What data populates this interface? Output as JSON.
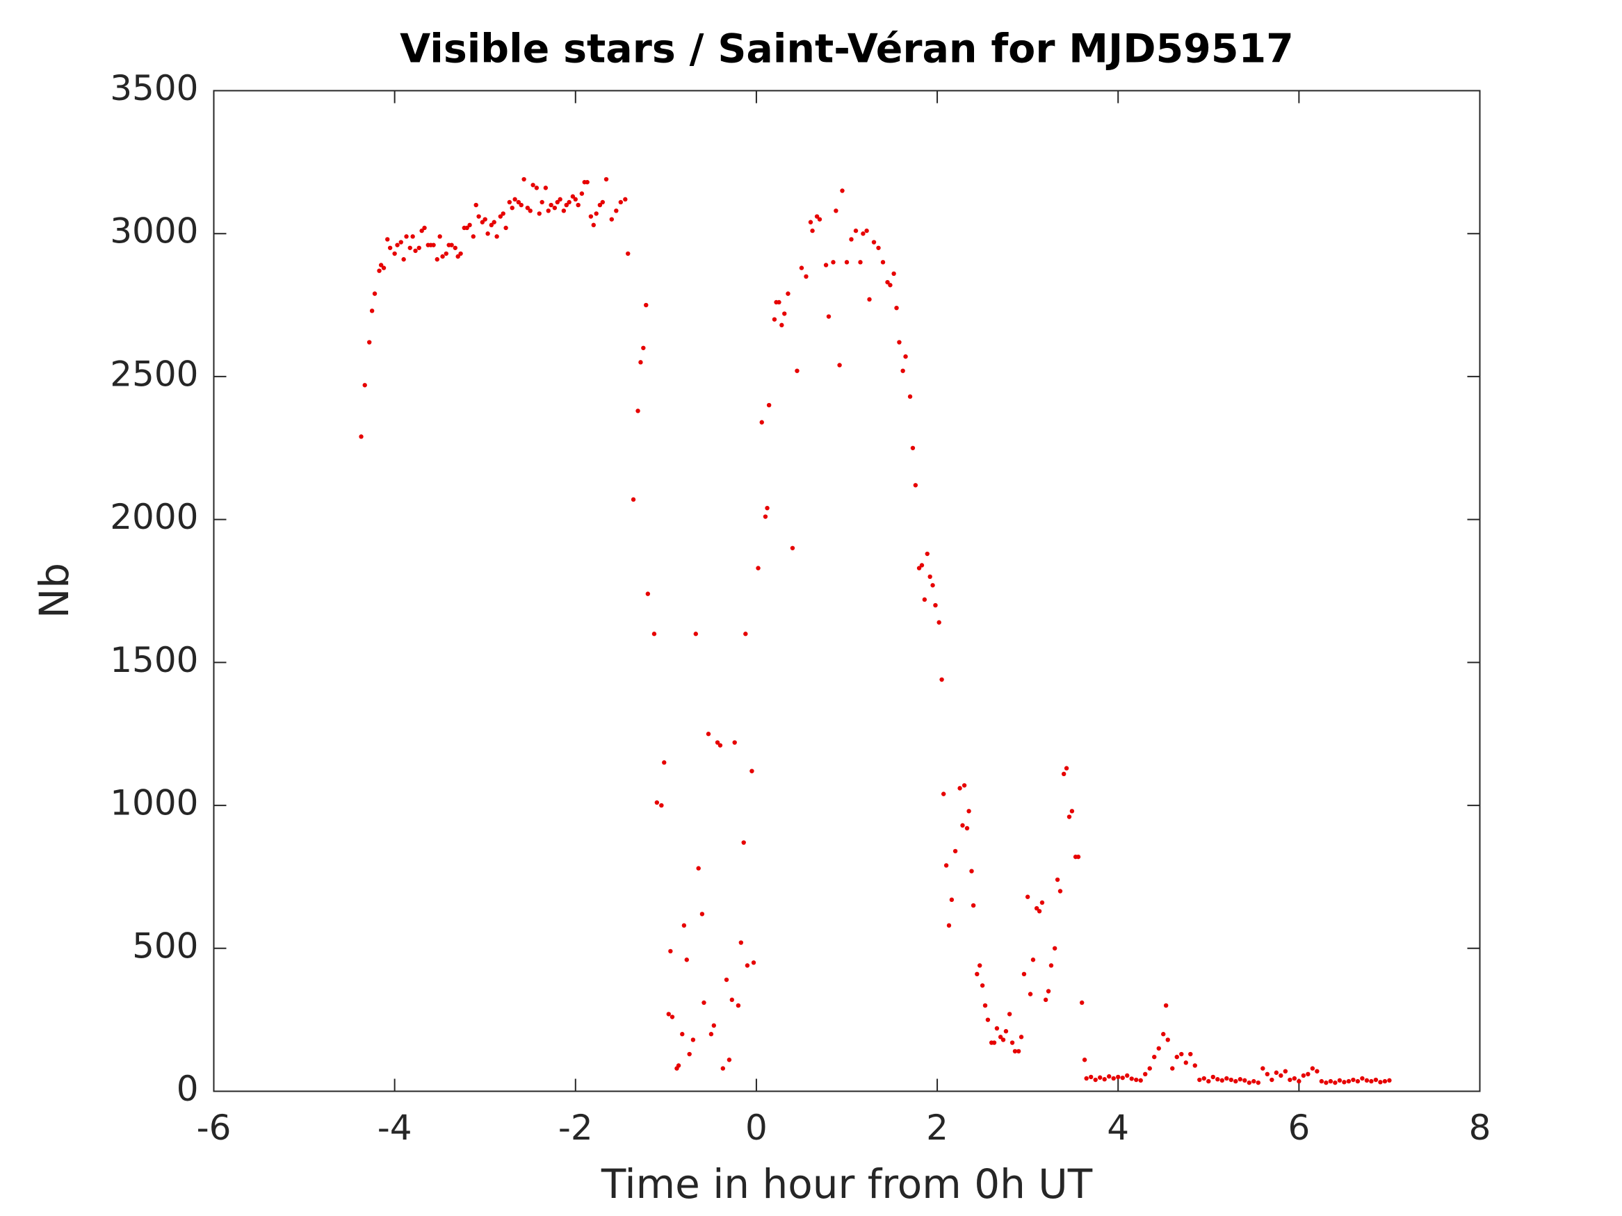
{
  "chart_data": {
    "type": "scatter",
    "title": "Visible stars / Saint-Véran for MJD59517",
    "xlabel": "Time in hour from 0h UT",
    "ylabel": "Nb",
    "color": "#e60000",
    "xlim": [
      -6,
      8
    ],
    "xticks": [
      -6,
      -4,
      -2,
      0,
      2,
      4,
      6,
      8
    ],
    "ylim": [
      0,
      3500
    ],
    "yticks": [
      0,
      500,
      1000,
      1500,
      2000,
      2500,
      3000,
      3500
    ],
    "x": [
      -4.37,
      -4.33,
      -4.28,
      -4.25,
      -4.22,
      -4.17,
      -4.15,
      -4.12,
      -4.08,
      -4.05,
      -4.0,
      -3.97,
      -3.93,
      -3.9,
      -3.87,
      -3.83,
      -3.8,
      -3.77,
      -3.73,
      -3.7,
      -3.67,
      -3.63,
      -3.6,
      -3.57,
      -3.53,
      -3.5,
      -3.47,
      -3.43,
      -3.4,
      -3.37,
      -3.33,
      -3.3,
      -3.27,
      -3.23,
      -3.2,
      -3.17,
      -3.13,
      -3.1,
      -3.07,
      -3.03,
      -3.0,
      -2.97,
      -2.93,
      -2.9,
      -2.87,
      -2.83,
      -2.8,
      -2.77,
      -2.73,
      -2.7,
      -2.67,
      -2.63,
      -2.6,
      -2.57,
      -2.53,
      -2.5,
      -2.47,
      -2.43,
      -2.4,
      -2.37,
      -2.33,
      -2.3,
      -2.27,
      -2.23,
      -2.2,
      -2.17,
      -2.13,
      -2.1,
      -2.07,
      -2.03,
      -2.0,
      -1.97,
      -1.93,
      -1.9,
      -1.87,
      -1.83,
      -1.8,
      -1.77,
      -1.73,
      -1.7,
      -1.66,
      -1.6,
      -1.55,
      -1.5,
      -1.45,
      -1.42,
      -1.36,
      -1.31,
      -1.28,
      -1.25,
      -1.22,
      -1.2,
      -1.13,
      -1.1,
      -1.05,
      -1.02,
      -0.97,
      -0.93,
      -0.95,
      -0.88,
      -0.86,
      -0.82,
      -0.8,
      -0.77,
      -0.74,
      -0.7,
      -0.67,
      -0.64,
      -0.6,
      -0.58,
      -0.53,
      -0.5,
      -0.47,
      -0.43,
      -0.4,
      -0.37,
      -0.33,
      -0.3,
      -0.27,
      -0.24,
      -0.2,
      -0.17,
      -0.14,
      -0.12,
      -0.1,
      -0.05,
      -0.03,
      0.02,
      0.06,
      0.1,
      0.12,
      0.14,
      0.2,
      0.22,
      0.25,
      0.28,
      0.31,
      0.35,
      0.4,
      0.45,
      0.5,
      0.55,
      0.6,
      0.62,
      0.67,
      0.7,
      0.77,
      0.8,
      0.85,
      0.88,
      0.92,
      0.95,
      1.0,
      1.05,
      1.1,
      1.15,
      1.18,
      1.22,
      1.25,
      1.3,
      1.35,
      1.4,
      1.45,
      1.48,
      1.52,
      1.55,
      1.58,
      1.62,
      1.65,
      1.7,
      1.73,
      1.76,
      1.8,
      1.83,
      1.86,
      1.89,
      1.92,
      1.95,
      1.98,
      2.02,
      2.05,
      2.07,
      2.1,
      2.13,
      2.16,
      2.2,
      2.25,
      2.28,
      2.3,
      2.33,
      2.35,
      2.38,
      2.4,
      2.44,
      2.47,
      2.5,
      2.53,
      2.56,
      2.6,
      2.63,
      2.66,
      2.7,
      2.73,
      2.76,
      2.8,
      2.83,
      2.86,
      2.9,
      2.93,
      2.96,
      3.0,
      3.03,
      3.06,
      3.1,
      3.13,
      3.16,
      3.2,
      3.23,
      3.26,
      3.3,
      3.33,
      3.36,
      3.4,
      3.43,
      3.46,
      3.49,
      3.53,
      3.56,
      3.6,
      3.63,
      3.65,
      3.7,
      3.75,
      3.8,
      3.85,
      3.9,
      3.95,
      4.0,
      4.05,
      4.1,
      4.15,
      4.2,
      4.25,
      4.3,
      4.35,
      4.4,
      4.45,
      4.5,
      4.53,
      4.55,
      4.6,
      4.65,
      4.7,
      4.75,
      4.8,
      4.85,
      4.9,
      4.95,
      5.0,
      5.05,
      5.1,
      5.15,
      5.2,
      5.25,
      5.3,
      5.35,
      5.4,
      5.45,
      5.5,
      5.55,
      5.6,
      5.65,
      5.7,
      5.75,
      5.8,
      5.85,
      5.9,
      5.95,
      6.0,
      6.05,
      6.1,
      6.15,
      6.2,
      6.25,
      6.3,
      6.35,
      6.4,
      6.45,
      6.5,
      6.55,
      6.6,
      6.65,
      6.7,
      6.75,
      6.8,
      6.85,
      6.9,
      6.95,
      7.0
    ],
    "values": [
      2290,
      2470,
      2620,
      2730,
      2790,
      2870,
      2890,
      2880,
      2980,
      2950,
      2930,
      2960,
      2970,
      2910,
      2990,
      2950,
      2990,
      2940,
      2950,
      3010,
      3020,
      2960,
      2960,
      2960,
      2910,
      2990,
      2920,
      2930,
      2960,
      2960,
      2950,
      2920,
      2930,
      3020,
      3020,
      3030,
      2990,
      3100,
      3060,
      3040,
      3050,
      3000,
      3030,
      3040,
      2990,
      3060,
      3070,
      3020,
      3110,
      3090,
      3120,
      3110,
      3100,
      3190,
      3090,
      3080,
      3170,
      3160,
      3070,
      3110,
      3160,
      3080,
      3100,
      3090,
      3110,
      3120,
      3080,
      3100,
      3110,
      3130,
      3120,
      3100,
      3140,
      3180,
      3180,
      3060,
      3030,
      3070,
      3100,
      3110,
      3190,
      3050,
      3080,
      3110,
      3120,
      2930,
      2070,
      2380,
      2550,
      2600,
      2750,
      1740,
      1600,
      1010,
      1000,
      1150,
      270,
      260,
      490,
      80,
      90,
      200,
      580,
      460,
      130,
      180,
      1600,
      780,
      620,
      310,
      1250,
      200,
      230,
      1220,
      1210,
      80,
      390,
      110,
      320,
      1220,
      300,
      520,
      870,
      1600,
      440,
      1120,
      450,
      1830,
      2340,
      2010,
      2040,
      2400,
      2700,
      2760,
      2760,
      2680,
      2720,
      2790,
      1900,
      2520,
      2880,
      2850,
      3040,
      3010,
      3060,
      3050,
      2890,
      2710,
      2900,
      3080,
      2540,
      3150,
      2900,
      2980,
      3010,
      2900,
      3000,
      3010,
      2770,
      2970,
      2950,
      2900,
      2830,
      2820,
      2860,
      2740,
      2620,
      2520,
      2570,
      2430,
      2250,
      2120,
      1830,
      1840,
      1720,
      1880,
      1800,
      1770,
      1700,
      1640,
      1440,
      1040,
      790,
      580,
      670,
      840,
      1060,
      930,
      1070,
      920,
      980,
      770,
      650,
      410,
      440,
      370,
      300,
      250,
      170,
      170,
      220,
      190,
      180,
      210,
      270,
      170,
      140,
      140,
      190,
      410,
      680,
      340,
      460,
      640,
      630,
      660,
      320,
      350,
      440,
      500,
      740,
      700,
      1110,
      1130,
      960,
      980,
      820,
      820,
      310,
      110,
      45,
      50,
      40,
      48,
      42,
      52,
      45,
      50,
      47,
      55,
      44,
      40,
      38,
      60,
      80,
      120,
      150,
      200,
      300,
      180,
      80,
      120,
      130,
      100,
      130,
      90,
      40,
      45,
      35,
      50,
      42,
      38,
      45,
      40,
      35,
      42,
      38,
      30,
      35,
      30,
      80,
      60,
      40,
      65,
      55,
      70,
      40,
      45,
      35,
      55,
      60,
      80,
      70,
      35,
      30,
      35,
      30,
      38,
      32,
      35,
      40,
      35,
      45,
      38,
      35,
      40,
      32,
      35,
      38
    ]
  }
}
